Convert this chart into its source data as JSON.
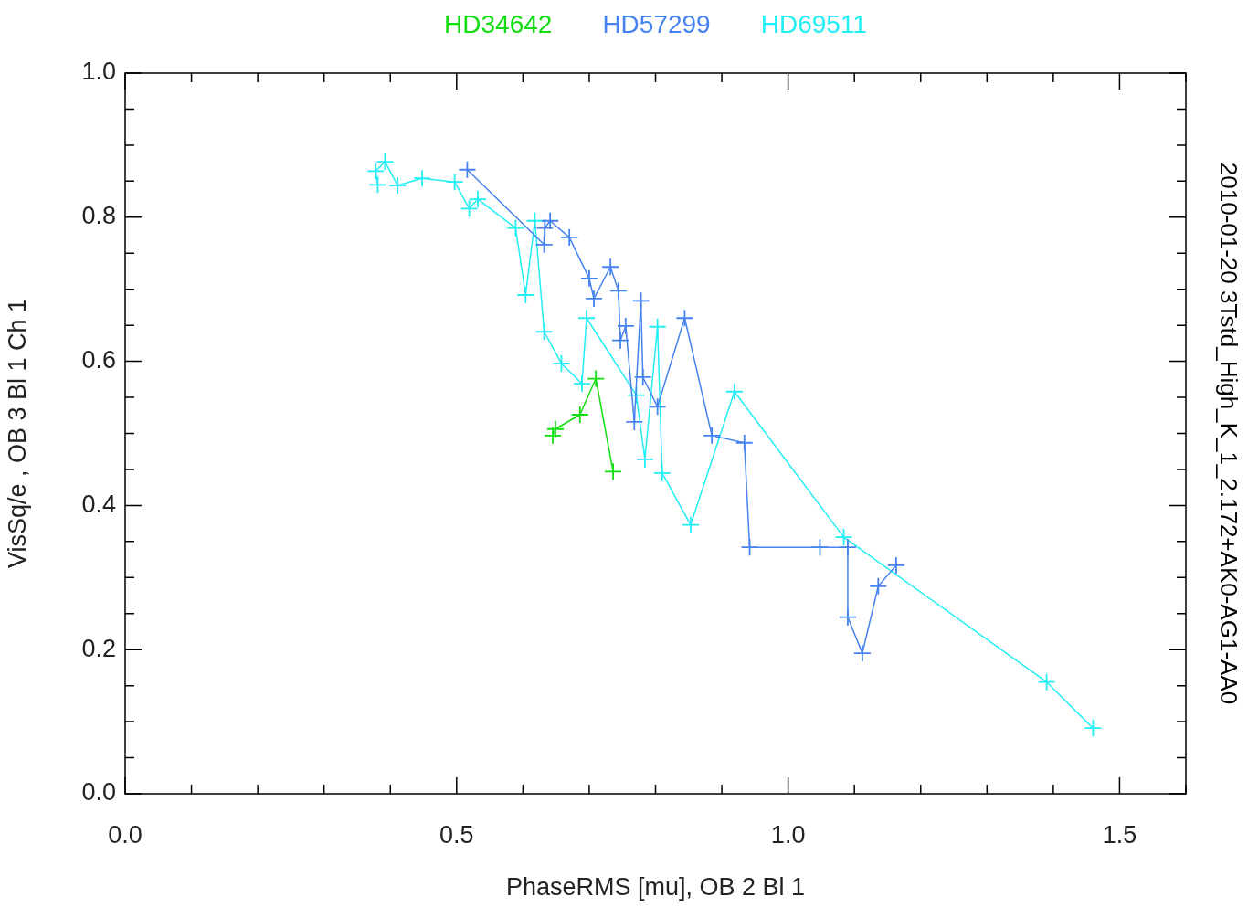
{
  "chart_data": {
    "type": "line",
    "xlabel": "PhaseRMS [mu], OB 2 Bl 1",
    "ylabel": "VisSq/e , OB 3 Bl 1 Ch 1",
    "annotations": [
      "2010-01-20 3Tstd_High_K_1_2.172+AK0-AG1-AA0"
    ],
    "legend": "top",
    "marker": "cross",
    "xlim": [
      0,
      1.6
    ],
    "xticks": [
      {
        "value": 0,
        "label": "0.0"
      },
      {
        "value": 0.1,
        "label": null
      },
      {
        "value": 0.2,
        "label": null
      },
      {
        "value": 0.3,
        "label": null
      },
      {
        "value": 0.4,
        "label": null
      },
      0.5,
      {
        "value": 0.6,
        "label": null
      },
      {
        "value": 0.7,
        "label": null
      },
      {
        "value": 0.8,
        "label": null
      },
      {
        "value": 0.9,
        "label": null
      },
      {
        "value": 1,
        "label": "1.0"
      },
      {
        "value": 1.1,
        "label": null
      },
      {
        "value": 1.2,
        "label": null
      },
      {
        "value": 1.3,
        "label": null
      },
      {
        "value": 1.4,
        "label": null
      },
      1.5,
      {
        "value": 1.6,
        "label": null
      }
    ],
    "ylim": [
      0,
      1
    ],
    "yticks": [
      {
        "value": 0,
        "label": "0.0"
      },
      {
        "value": 0.05,
        "label": null
      },
      {
        "value": 0.1,
        "label": null
      },
      {
        "value": 0.15,
        "label": null
      },
      0.2,
      {
        "value": 0.25,
        "label": null
      },
      {
        "value": 0.3,
        "label": null
      },
      {
        "value": 0.35,
        "label": null
      },
      0.4,
      {
        "value": 0.45,
        "label": null
      },
      {
        "value": 0.5,
        "label": null
      },
      {
        "value": 0.55,
        "label": null
      },
      0.6,
      {
        "value": 0.65,
        "label": null
      },
      {
        "value": 0.7,
        "label": null
      },
      {
        "value": 0.75,
        "label": null
      },
      0.8,
      {
        "value": 0.85,
        "label": null
      },
      {
        "value": 0.9,
        "label": null
      },
      {
        "value": 0.95,
        "label": null
      },
      {
        "value": 1,
        "label": "1.0"
      }
    ],
    "series": [
      {
        "name": "HD34642",
        "color": "#11dd11",
        "x": [
          0.645,
          0.649,
          0.686,
          0.71,
          0.736
        ],
        "values": [
          0.497,
          0.506,
          0.526,
          0.576,
          0.447
        ]
      },
      {
        "name": "HD57299",
        "color": "#4682f0",
        "x": [
          0.516,
          0.632,
          0.633,
          0.641,
          0.67,
          0.7,
          0.707,
          0.732,
          0.744,
          0.747,
          0.755,
          0.768,
          0.778,
          0.781,
          0.803,
          0.844,
          0.885,
          0.934,
          0.942,
          1.048,
          1.09,
          1.09,
          1.112,
          1.136,
          1.163
        ],
        "values": [
          0.866,
          0.762,
          0.785,
          0.795,
          0.772,
          0.715,
          0.687,
          0.731,
          0.698,
          0.629,
          0.649,
          0.516,
          0.684,
          0.578,
          0.537,
          0.66,
          0.497,
          0.487,
          0.342,
          0.342,
          0.342,
          0.245,
          0.195,
          0.288,
          0.317
        ]
      },
      {
        "name": "HD69511",
        "color": "#22eef5",
        "x": [
          0.381,
          0.378,
          0.392,
          0.411,
          0.448,
          0.497,
          0.519,
          0.532,
          0.589,
          0.604,
          0.618,
          0.632,
          0.658,
          0.689,
          0.696,
          0.771,
          0.784,
          0.803,
          0.81,
          0.853,
          0.919,
          1.084,
          1.39,
          1.46
        ],
        "values": [
          0.845,
          0.864,
          0.877,
          0.844,
          0.854,
          0.849,
          0.812,
          0.825,
          0.785,
          0.692,
          0.795,
          0.641,
          0.597,
          0.569,
          0.66,
          0.553,
          0.464,
          0.648,
          0.445,
          0.373,
          0.558,
          0.356,
          0.155,
          0.091
        ]
      }
    ]
  }
}
